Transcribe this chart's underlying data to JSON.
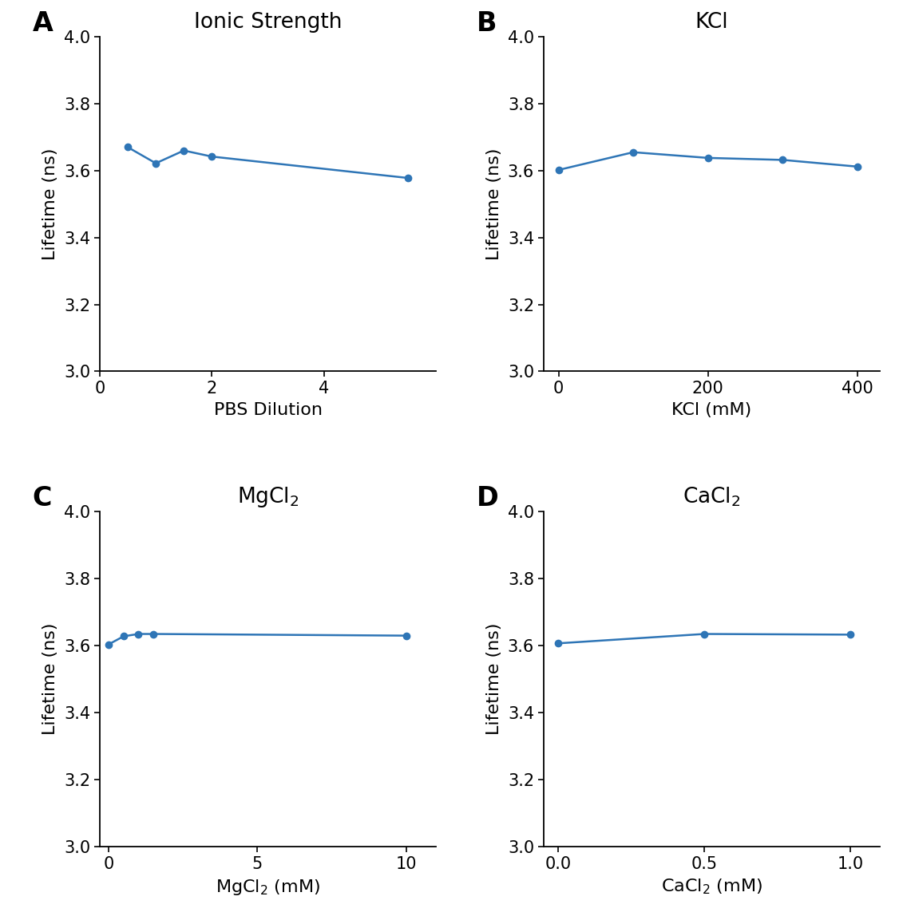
{
  "panels": [
    {
      "label": "A",
      "title": "Ionic Strength",
      "xlabel": "PBS Dilution",
      "ylabel": "Lifetime (ns)",
      "x": [
        0.5,
        1.0,
        1.5,
        2.0,
        5.5
      ],
      "y": [
        3.67,
        3.622,
        3.66,
        3.642,
        3.578
      ],
      "xlim": [
        0,
        6
      ],
      "xticks": [
        0,
        2,
        4
      ],
      "yticks": [
        3.0,
        3.2,
        3.4,
        3.6,
        3.8,
        4.0
      ],
      "ylim": [
        3.0,
        4.0
      ]
    },
    {
      "label": "B",
      "title": "KCl",
      "xlabel": "KCl (mM)",
      "ylabel": "Lifetime (ns)",
      "x": [
        0,
        100,
        200,
        300,
        400
      ],
      "y": [
        3.602,
        3.655,
        3.638,
        3.632,
        3.612
      ],
      "xlim": [
        -20,
        430
      ],
      "xticks": [
        0,
        200,
        400
      ],
      "yticks": [
        3.0,
        3.2,
        3.4,
        3.6,
        3.8,
        4.0
      ],
      "ylim": [
        3.0,
        4.0
      ]
    },
    {
      "label": "C",
      "title": "MgCl$_2$",
      "xlabel": "MgCl$_2$ (mM)",
      "ylabel": "Lifetime (ns)",
      "x": [
        0.0,
        0.5,
        1.0,
        1.5,
        10.0
      ],
      "y": [
        3.604,
        3.628,
        3.635,
        3.635,
        3.63
      ],
      "xlim": [
        -0.3,
        11.0
      ],
      "xticks": [
        0,
        5,
        10
      ],
      "yticks": [
        3.0,
        3.2,
        3.4,
        3.6,
        3.8,
        4.0
      ],
      "ylim": [
        3.0,
        4.0
      ]
    },
    {
      "label": "D",
      "title": "CaCl$_2$",
      "xlabel": "CaCl$_2$ (mM)",
      "ylabel": "Lifetime (ns)",
      "x": [
        0.0,
        0.5,
        1.0
      ],
      "y": [
        3.607,
        3.635,
        3.633
      ],
      "xlim": [
        -0.05,
        1.1
      ],
      "xticks": [
        0.0,
        0.5,
        1.0
      ],
      "yticks": [
        3.0,
        3.2,
        3.4,
        3.6,
        3.8,
        4.0
      ],
      "ylim": [
        3.0,
        4.0
      ]
    }
  ],
  "line_color": "#2e75b6",
  "marker": "o",
  "markersize": 6,
  "linewidth": 1.8,
  "title_fontsize": 19,
  "tick_fontsize": 15,
  "axis_label_fontsize": 16,
  "panel_label_fontsize": 24,
  "background_color": "#ffffff"
}
